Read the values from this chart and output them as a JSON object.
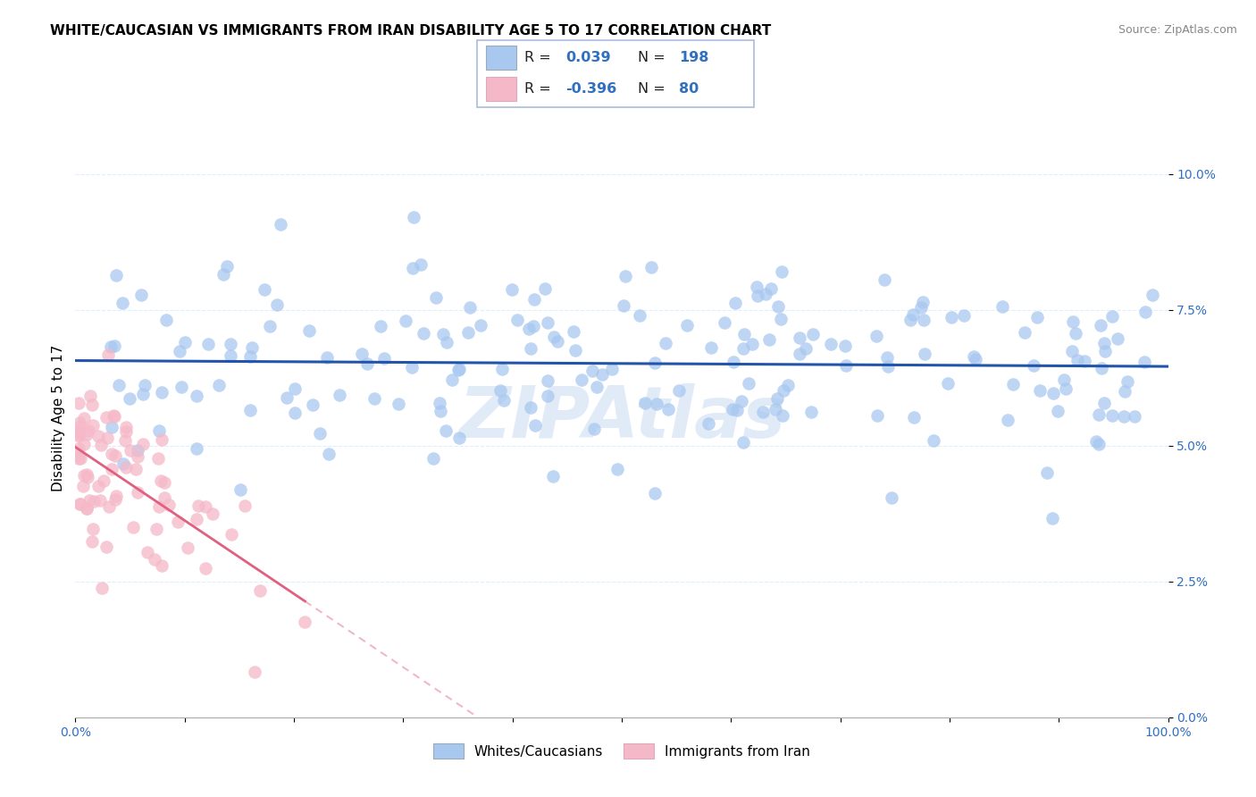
{
  "title": "WHITE/CAUCASIAN VS IMMIGRANTS FROM IRAN DISABILITY AGE 5 TO 17 CORRELATION CHART",
  "source": "Source: ZipAtlas.com",
  "ylabel": "Disability Age 5 to 17",
  "watermark": "ZIPAtlas",
  "blue_R": 0.039,
  "blue_N": 198,
  "pink_R": -0.396,
  "pink_N": 80,
  "blue_color": "#A8C8F0",
  "pink_color": "#F5B8C8",
  "blue_line_color": "#2255AA",
  "pink_line_color": "#E06080",
  "title_fontsize": 11,
  "source_fontsize": 9,
  "legend_fontsize": 11,
  "ylabel_fontsize": 11,
  "tick_color": "#3070C0",
  "tick_fontsize": 10,
  "xlim": [
    0.0,
    1.0
  ],
  "ylim": [
    0.0,
    0.11
  ],
  "yticks": [
    0.0,
    0.025,
    0.05,
    0.075,
    0.1
  ],
  "ytick_labels": [
    "0.0%",
    "2.5%",
    "5.0%",
    "7.5%",
    "10.0%"
  ],
  "grid_color": "#DDEEFF",
  "background_color": "#FFFFFF",
  "blue_scatter_seed": 12,
  "pink_scatter_seed": 99
}
